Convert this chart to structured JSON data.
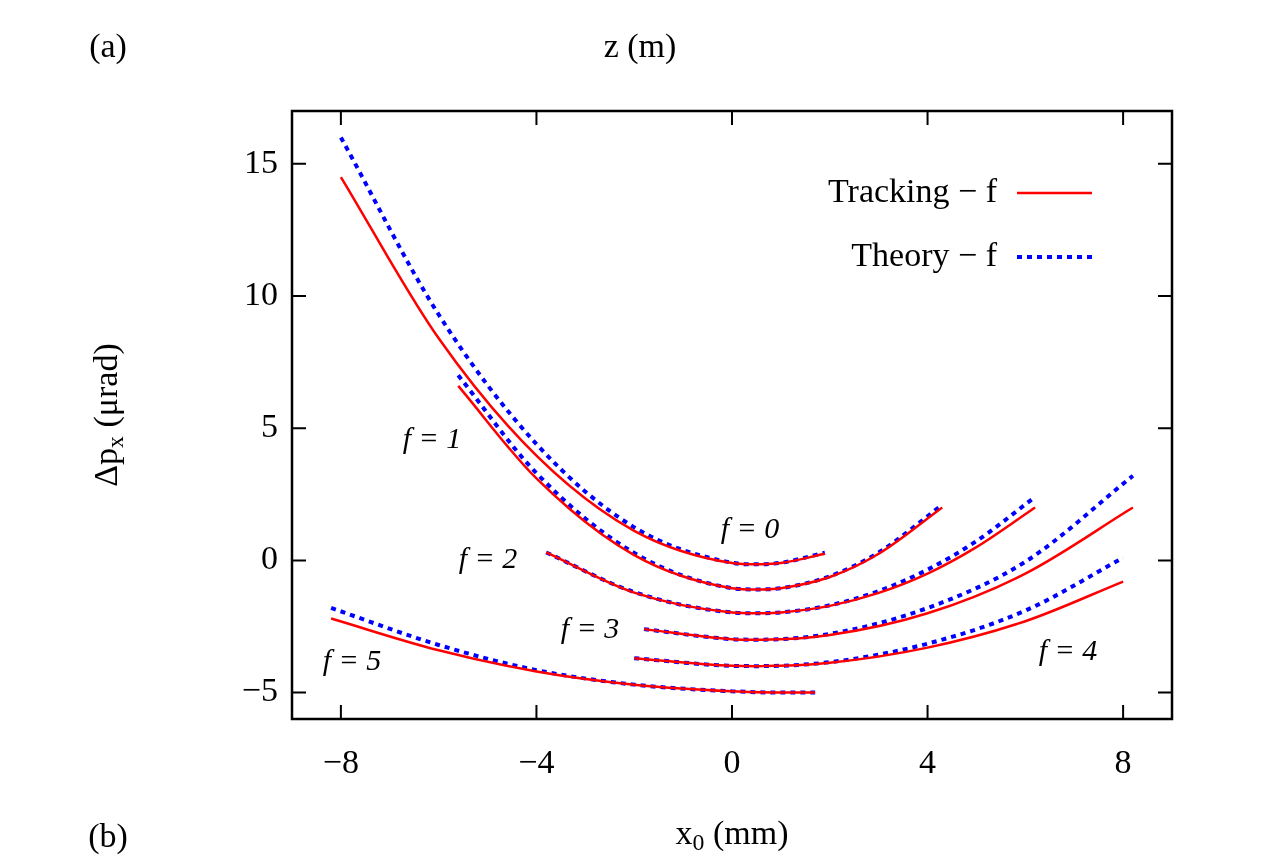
{
  "chart_data": {
    "type": "line",
    "xlabel": "x$_{0}$ (mm)",
    "ylabel": "Δp$_{x}$ (μrad)",
    "xlim": [
      -9,
      9
    ],
    "ylim": [
      -6,
      17
    ],
    "xticks": [
      {
        "value": -8,
        "label": "−8"
      },
      {
        "value": -4,
        "label": "−4"
      },
      0,
      4,
      8
    ],
    "yticks": [
      {
        "value": -5,
        "label": "−5"
      },
      0,
      5,
      10,
      15
    ],
    "legend": "top right",
    "marker": "none",
    "series": [
      {
        "name": "Tracking − f",
        "color": "#ff0000",
        "line_style": "solid",
        "x": [
          -8,
          -6,
          -4,
          -2,
          0,
          0.5,
          1,
          1.9
        ],
        "values": [
          14.5,
          8.4,
          3.96,
          1.12,
          -0.1,
          -0.15,
          -0.1,
          0.25
        ]
      },
      {
        "name": "Theory − f",
        "color": "#0000ff",
        "line_style": "dotted",
        "x": [
          -8,
          -6,
          -4,
          -2,
          0,
          0.5,
          1,
          1.9
        ],
        "values": [
          16.0,
          9.3,
          4.4,
          1.25,
          -0.09,
          -0.15,
          -0.09,
          0.29
        ]
      },
      {
        "color": "#ff0000",
        "line_style": "solid",
        "x": [
          -5.6,
          -4,
          -2,
          0,
          0.5,
          1,
          2,
          3,
          4.3
        ],
        "values": [
          6.6,
          3.1,
          0.2,
          -1.05,
          -1.1,
          -1.05,
          -0.63,
          0.25,
          2.0
        ]
      },
      {
        "color": "#0000ff",
        "line_style": "dotted",
        "x": [
          -5.6,
          -4,
          -2,
          0,
          0.5,
          1,
          2,
          3,
          4.3
        ],
        "values": [
          7.0,
          3.3,
          0.28,
          -1.05,
          -1.1,
          -1.05,
          -0.6,
          0.3,
          2.1
        ]
      },
      {
        "color": "#ff0000",
        "line_style": "solid",
        "x": [
          -3.8,
          -2,
          0,
          0.5,
          1,
          2,
          3,
          4,
          5,
          6.2
        ],
        "values": [
          0.3,
          -1.22,
          -1.97,
          -2.0,
          -1.97,
          -1.72,
          -1.23,
          -0.5,
          0.5,
          2.0
        ]
      },
      {
        "color": "#0000ff",
        "line_style": "dotted",
        "x": [
          -3.8,
          -2,
          0,
          0.5,
          1,
          2,
          3,
          4,
          5,
          6.2
        ],
        "values": [
          0.3,
          -1.2,
          -1.97,
          -2.0,
          -1.97,
          -1.7,
          -1.16,
          -0.35,
          0.73,
          2.4
        ]
      },
      {
        "color": "#ff0000",
        "line_style": "solid",
        "x": [
          -1.8,
          0,
          0.5,
          2,
          4,
          6,
          8.2
        ],
        "values": [
          -2.6,
          -2.98,
          -3.0,
          -2.82,
          -2.0,
          -0.5,
          2.0
        ]
      },
      {
        "color": "#0000ff",
        "line_style": "dotted",
        "x": [
          -1.8,
          0,
          0.5,
          2,
          4,
          6,
          8.2
        ],
        "values": [
          -2.6,
          -2.98,
          -3.0,
          -2.78,
          -1.8,
          -0.05,
          3.2
        ]
      },
      {
        "color": "#ff0000",
        "line_style": "solid",
        "x": [
          -2,
          0,
          0.5,
          2,
          4,
          6,
          8
        ],
        "values": [
          -3.7,
          -3.99,
          -4.0,
          -3.87,
          -3.3,
          -2.3,
          -0.8
        ]
      },
      {
        "color": "#0000ff",
        "line_style": "dotted",
        "x": [
          -2,
          0,
          0.5,
          2,
          4,
          6,
          8
        ],
        "values": [
          -3.7,
          -3.99,
          -4.0,
          -3.85,
          -3.15,
          -1.9,
          0.1
        ]
      },
      {
        "color": "#ff0000",
        "line_style": "solid",
        "x": [
          -8.2,
          -6,
          -4,
          -2,
          0,
          1,
          1.7
        ],
        "values": [
          -2.2,
          -3.4,
          -4.2,
          -4.7,
          -4.95,
          -5.0,
          -5.0
        ]
      },
      {
        "color": "#0000ff",
        "line_style": "dotted",
        "x": [
          -8.2,
          -6,
          -4,
          -2,
          0,
          1,
          1.7
        ],
        "values": [
          -1.8,
          -3.2,
          -4.15,
          -4.7,
          -4.95,
          -5.0,
          -5.0
        ]
      }
    ],
    "annotations": [
      "(a)",
      "z (m)",
      "(b)",
      "f = 0",
      "f = 1",
      "f = 2",
      "f = 3",
      "f = 4",
      "f = 5"
    ]
  }
}
